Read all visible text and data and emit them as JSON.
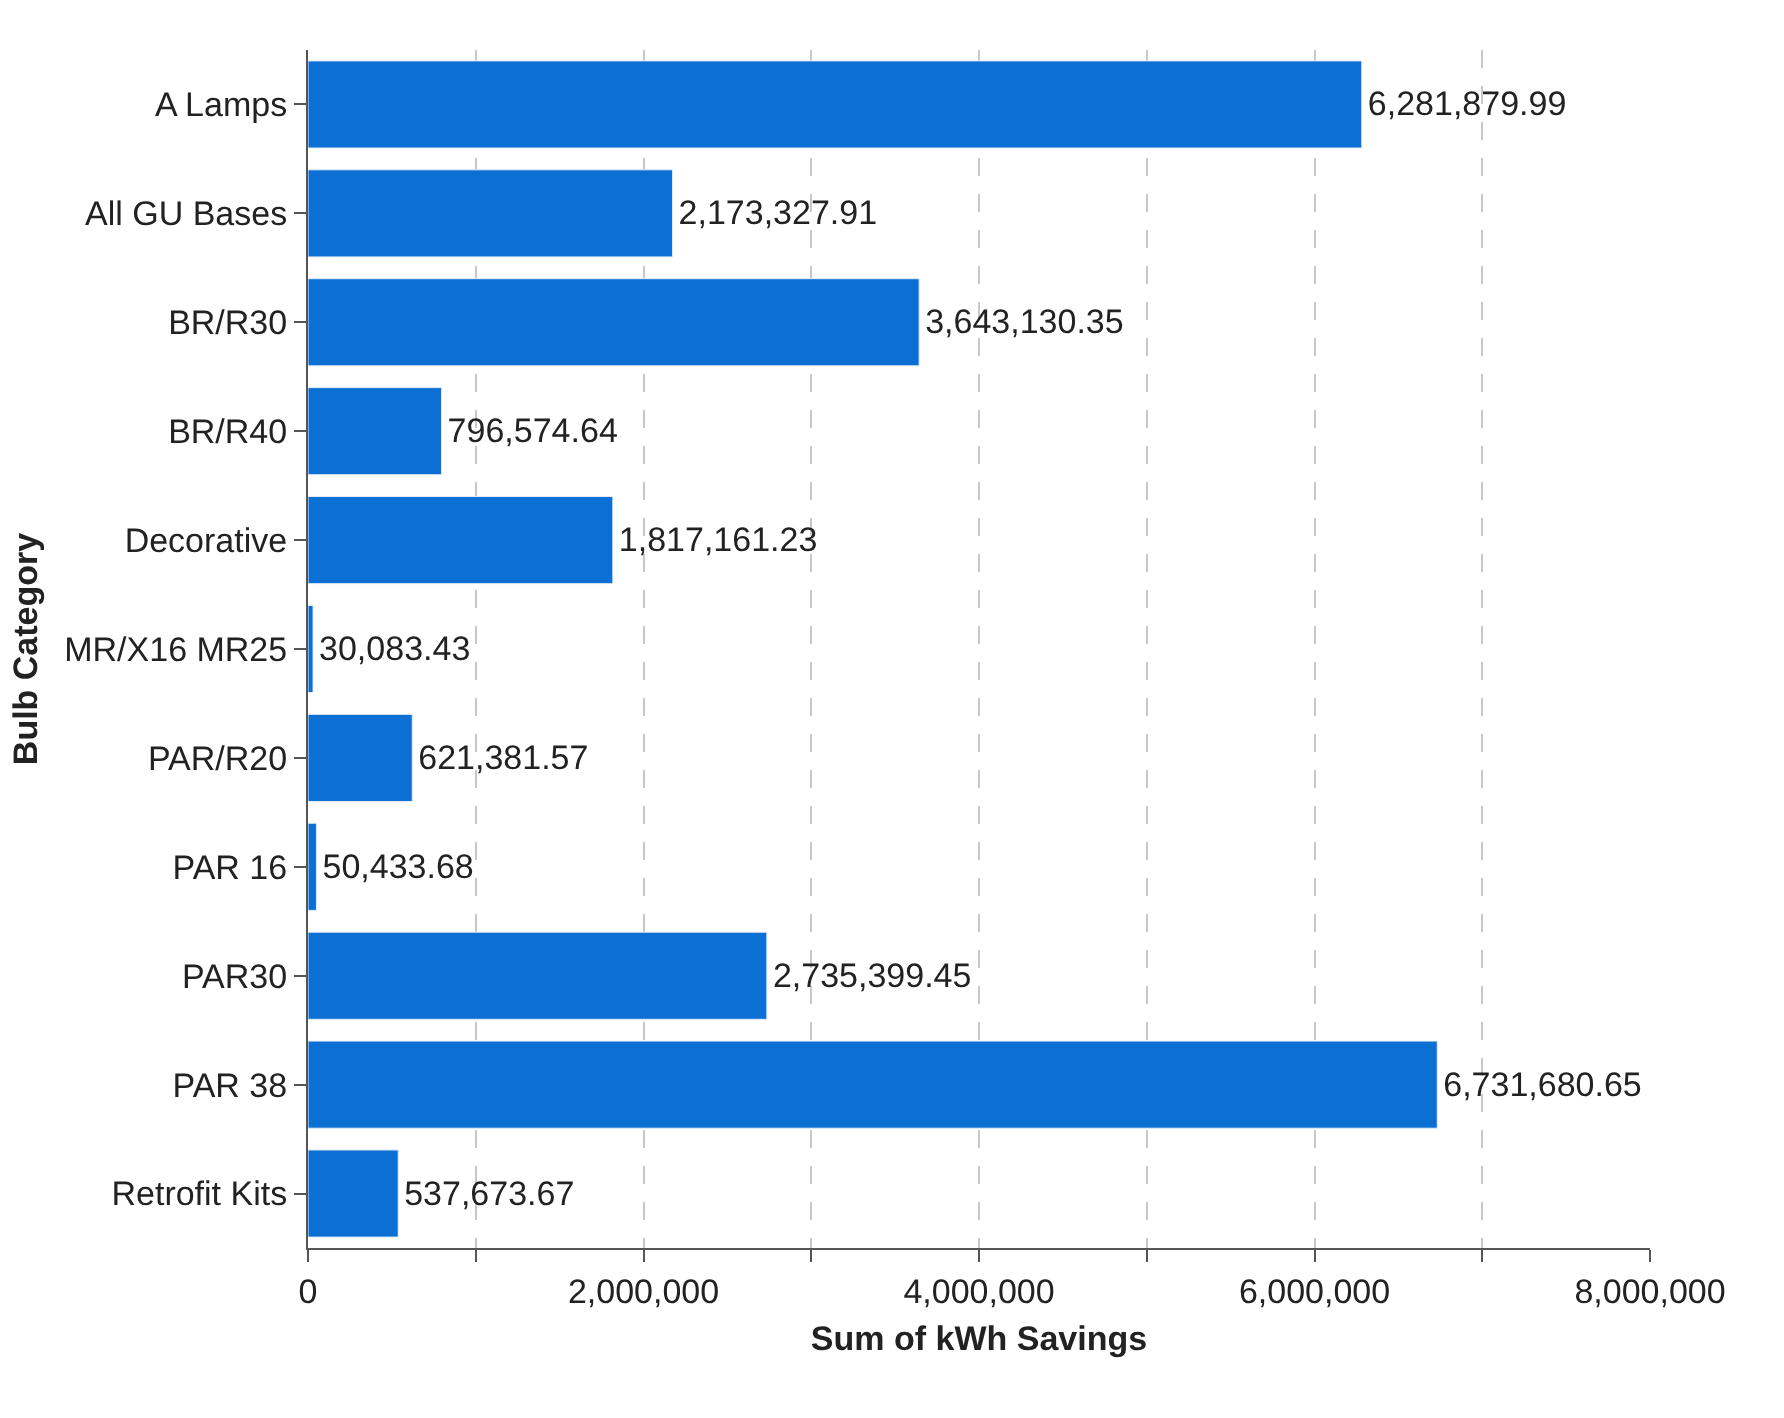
{
  "chart_data": {
    "type": "bar",
    "orientation": "horizontal",
    "xlabel": "Sum of kWh Savings",
    "ylabel": "Bulb Category",
    "categories": [
      "A Lamps",
      "All GU Bases",
      "BR/R30",
      "BR/R40",
      "Decorative",
      "MR/X16 MR25",
      "PAR/R20",
      "PAR 16",
      "PAR30",
      "PAR 38",
      "Retrofit Kits"
    ],
    "values": [
      6281879.99,
      2173327.91,
      3643130.35,
      796574.64,
      1817161.23,
      30083.43,
      621381.57,
      50433.68,
      2735399.45,
      6731680.65,
      537673.67
    ],
    "value_labels": [
      "6,281,879.99",
      "2,173,327.91",
      "3,643,130.35",
      "796,574.64",
      "1,817,161.23",
      "30,083.43",
      "621,381.57",
      "50,433.68",
      "2,735,399.45",
      "6,731,680.65",
      "537,673.67"
    ],
    "color": "#0b6fd4",
    "grid": "x",
    "legend": false,
    "xlim": [
      0,
      8000000
    ],
    "xticks": [
      0,
      {
        "value": 1000000,
        "label": null
      },
      {
        "value": 2000000,
        "label": "2,000,000"
      },
      {
        "value": 3000000,
        "label": null
      },
      {
        "value": 4000000,
        "label": "4,000,000"
      },
      {
        "value": 5000000,
        "label": null
      },
      {
        "value": 6000000,
        "label": "6,000,000"
      },
      {
        "value": 7000000,
        "label": null
      },
      {
        "value": 8000000,
        "label": "8,000,000"
      }
    ]
  }
}
